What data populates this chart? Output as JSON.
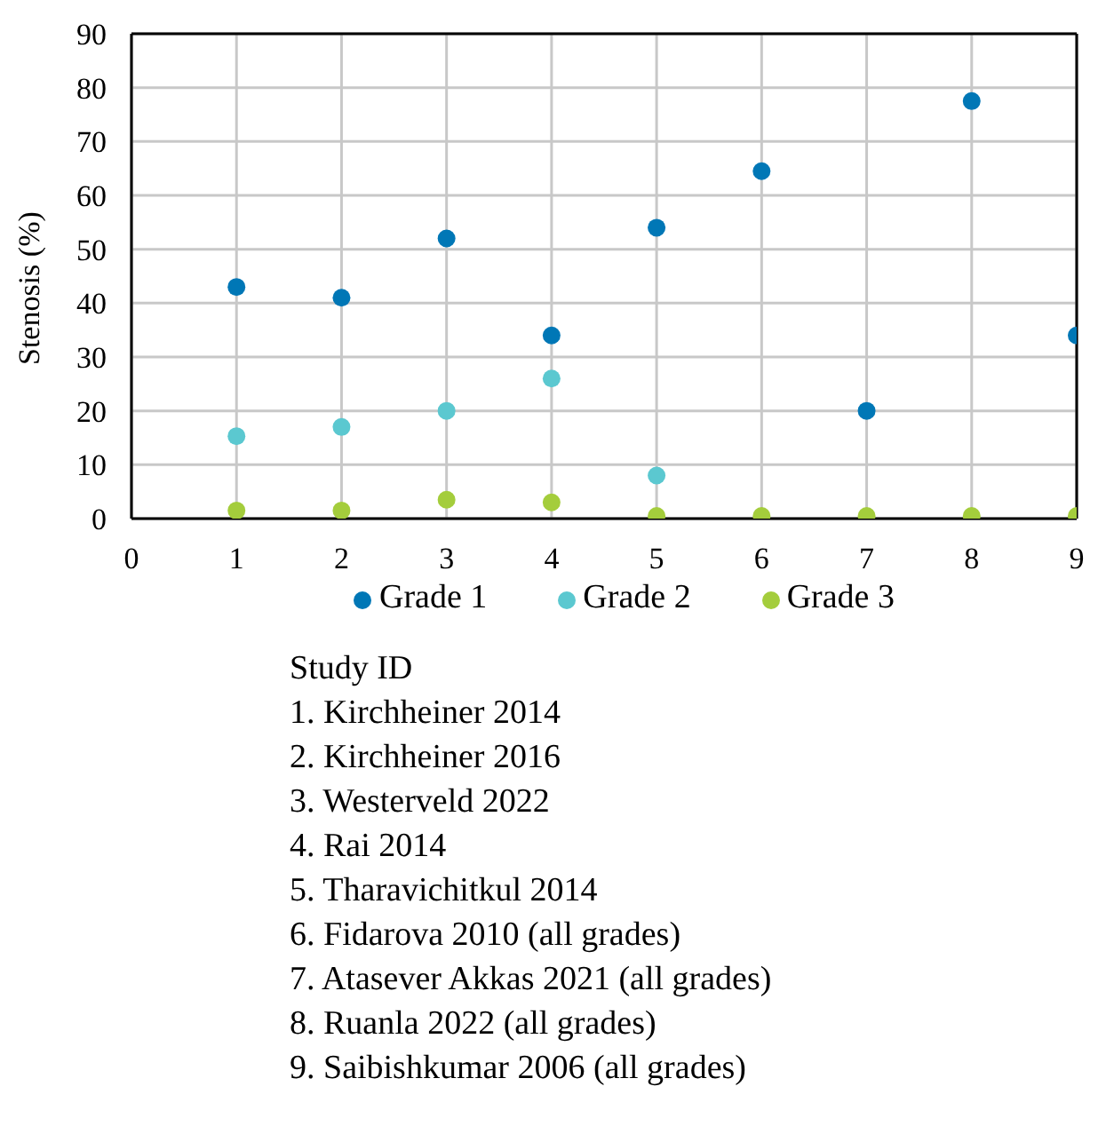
{
  "chart_data": {
    "type": "scatter",
    "ylabel": "Stenosis (%)",
    "x": [
      1,
      2,
      3,
      4,
      5,
      6,
      7,
      8,
      9
    ],
    "series": [
      {
        "name": "Grade 1",
        "color": "#0077b6",
        "values": [
          43,
          41,
          52,
          34,
          54,
          64.5,
          20,
          77.5,
          34
        ]
      },
      {
        "name": "Grade 2",
        "color": "#5bc8d0",
        "values": [
          15.3,
          17,
          20,
          26,
          8,
          null,
          null,
          null,
          null
        ]
      },
      {
        "name": "Grade 3",
        "color": "#a4cd3c",
        "values": [
          1.5,
          1.5,
          3.5,
          3,
          0.5,
          0.5,
          0.5,
          0.5,
          0.5
        ]
      }
    ],
    "xlim": [
      0,
      9
    ],
    "xticks": [
      0,
      1,
      2,
      3,
      4,
      5,
      6,
      7,
      8,
      9
    ],
    "ylim": [
      0,
      90
    ],
    "yticks": [
      0,
      10,
      20,
      30,
      40,
      50,
      60,
      70,
      80,
      90
    ],
    "grid": true,
    "legend": "bottom",
    "marker": "circle",
    "annotations": [
      "Study ID",
      "1. Kirchheiner 2014",
      "2. Kirchheiner 2016",
      "3. Westerveld 2022",
      "4. Rai 2014",
      "5. Tharavichitkul 2014",
      "6. Fidarova 2010 (all grades)",
      "7. Atasever Akkas 2021 (all grades)",
      "8. Ruanla 2022 (all grades)",
      "9. Saibishkumar 2006 (all grades)"
    ]
  }
}
